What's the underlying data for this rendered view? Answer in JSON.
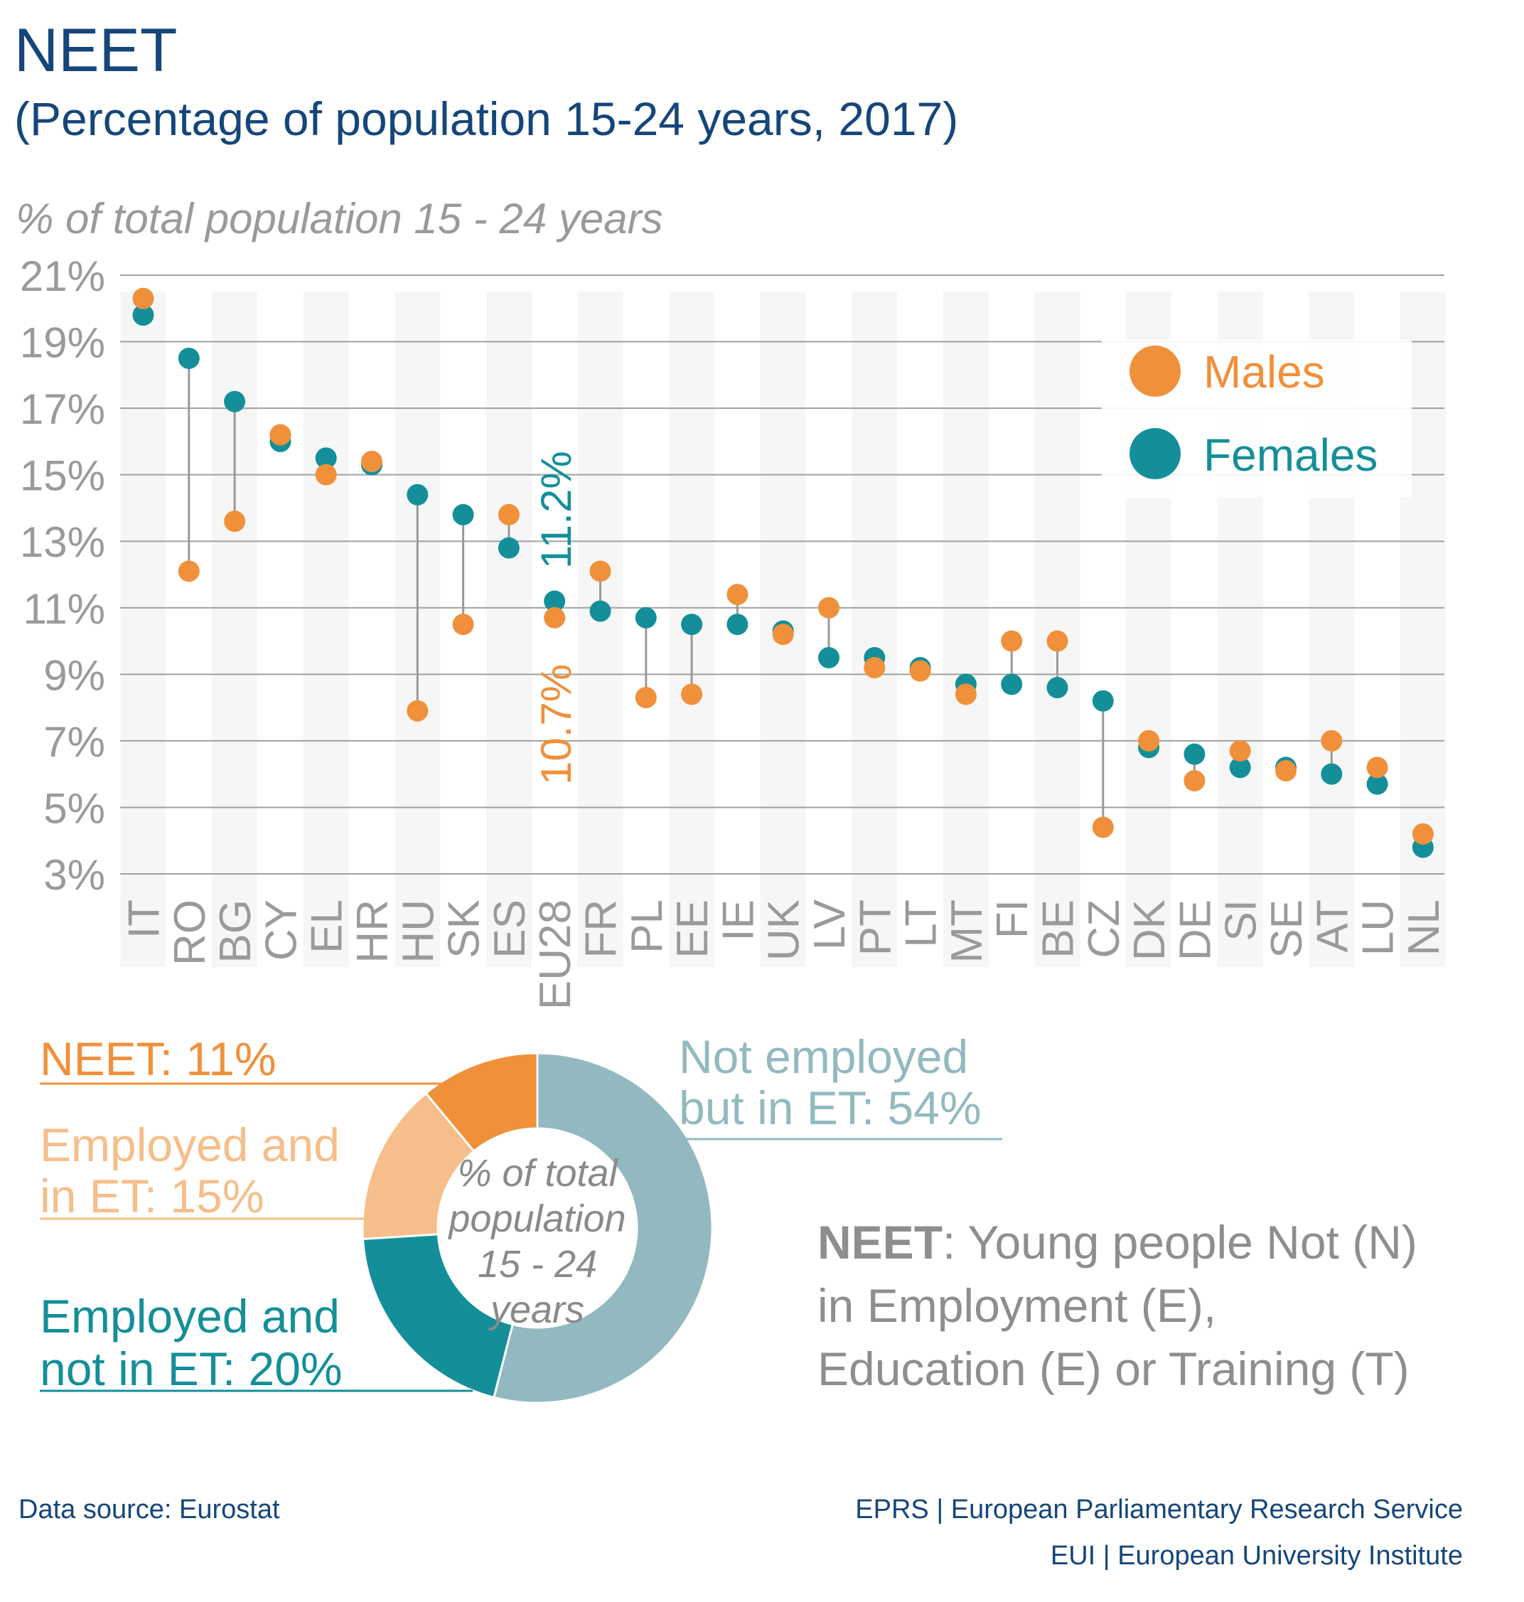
{
  "header": {
    "title": "NEET",
    "subtitle": "(Percentage of population 15-24 years, 2017)"
  },
  "colors": {
    "males": "#f0903a",
    "females": "#148f99",
    "grid": "#a0a0a0",
    "band": "#f6f6f6",
    "text_grey": "#9a9a9a",
    "title": "#15467a"
  },
  "chart_data": [
    {
      "type": "scatter",
      "subtype": "dumbbell",
      "ylabel": "% of total population 15 - 24 years",
      "ylim": [
        3,
        21
      ],
      "yticks": [
        "21%",
        "19%",
        "17%",
        "15%",
        "13%",
        "11%",
        "9%",
        "7%",
        "5%",
        "3%"
      ],
      "ytick_values": [
        21,
        19,
        17,
        15,
        13,
        11,
        9,
        7,
        5,
        3
      ],
      "grid": true,
      "legend_placement": "top-right",
      "categories": [
        "IT",
        "RO",
        "BG",
        "CY",
        "EL",
        "HR",
        "HU",
        "SK",
        "ES",
        "EU28",
        "FR",
        "PL",
        "EE",
        "IE",
        "UK",
        "LV",
        "PT",
        "LT",
        "MT",
        "FI",
        "BE",
        "CZ",
        "DK",
        "DE",
        "SI",
        "SE",
        "AT",
        "LU",
        "NL"
      ],
      "series": [
        {
          "name": "Males",
          "values": [
            20.3,
            12.1,
            13.6,
            16.2,
            15.0,
            15.4,
            7.9,
            10.5,
            13.8,
            10.7,
            12.1,
            8.3,
            8.4,
            11.4,
            10.2,
            11.0,
            9.2,
            9.1,
            8.4,
            10.0,
            10.0,
            4.4,
            7.0,
            5.8,
            6.7,
            6.1,
            7.0,
            6.2,
            4.2
          ]
        },
        {
          "name": "Females",
          "values": [
            19.8,
            18.5,
            17.2,
            16.0,
            15.5,
            15.3,
            14.4,
            13.8,
            12.8,
            11.2,
            10.9,
            10.7,
            10.5,
            10.5,
            10.3,
            9.5,
            9.5,
            9.2,
            8.7,
            8.7,
            8.6,
            8.2,
            6.8,
            6.6,
            6.2,
            6.2,
            6.0,
            5.7,
            3.8
          ]
        }
      ],
      "annotations": {
        "females_eu28": "11.2%",
        "males_eu28": "10.7%"
      }
    },
    {
      "type": "pie",
      "subtype": "donut",
      "center_label": [
        "% of total",
        "population",
        "15 - 24",
        "years"
      ],
      "slices": [
        {
          "label": "Not employed but in ET",
          "value": 54,
          "color": "#92b9c0",
          "text": [
            "Not employed",
            "but in ET: 54%"
          ]
        },
        {
          "label": "Employed and not in ET",
          "value": 20,
          "color": "#148f99",
          "text": [
            "Employed and",
            "not in ET: 20%"
          ]
        },
        {
          "label": "Employed and in ET",
          "value": 15,
          "color": "#f6be8a",
          "text": [
            "Employed and",
            "in ET: 15%"
          ]
        },
        {
          "label": "NEET",
          "value": 11,
          "color": "#f0903a",
          "text": [
            "NEET: 11%"
          ]
        }
      ]
    }
  ],
  "definition": {
    "bold": "NEET",
    "line1": ": Young people Not (N)",
    "line2": "in Employment (E),",
    "line3": "Education (E) or Training (T)"
  },
  "footer": {
    "source": "Data source: Eurostat",
    "credit1": "EPRS | European Parliamentary Research Service",
    "credit2": "EUI | European University Institute"
  }
}
